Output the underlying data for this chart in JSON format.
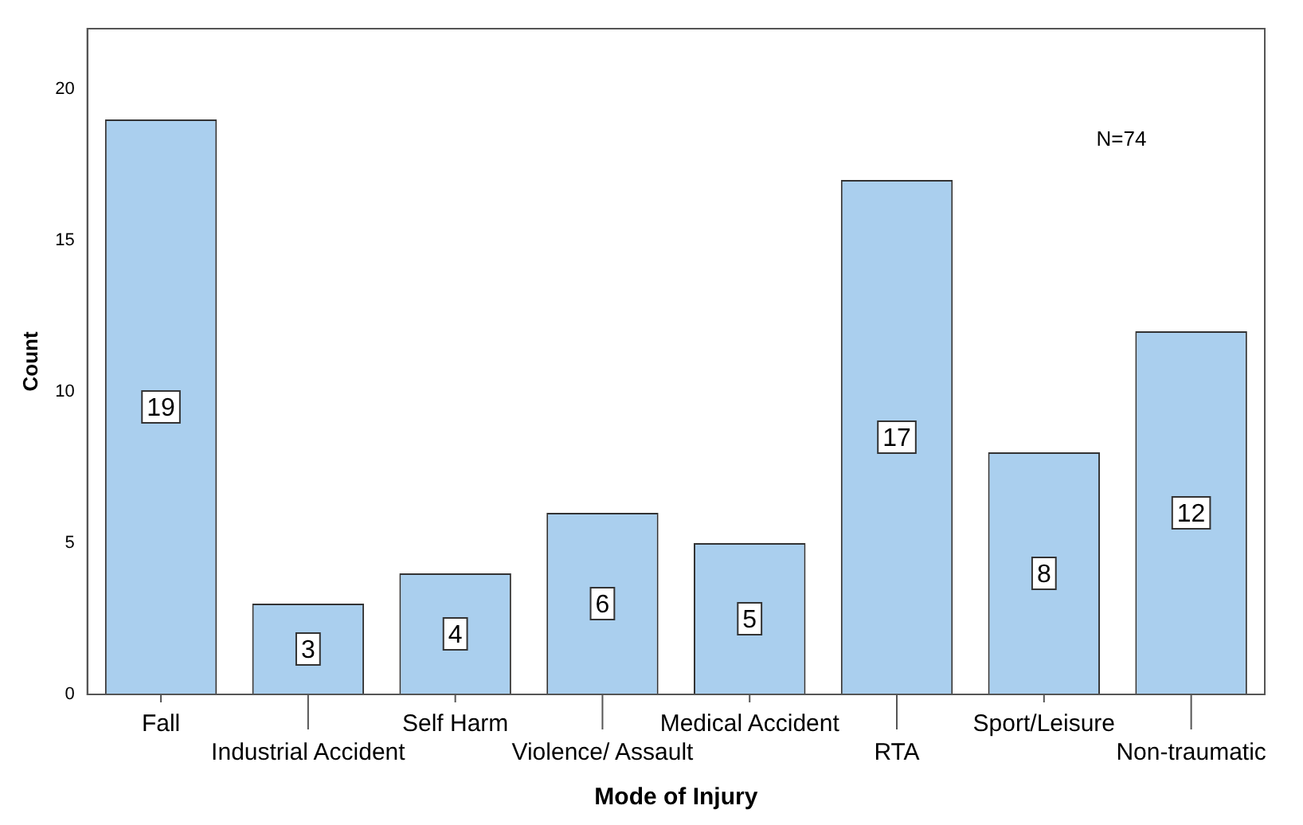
{
  "chart_data": {
    "type": "bar",
    "xlabel": "Mode of Injury",
    "ylabel": "Count",
    "categories": [
      "Fall",
      "Industrial Accident",
      "Self Harm",
      "Violence/ Assault",
      "Medical Accident",
      "RTA",
      "Sport/Leisure",
      "Non-traumatic"
    ],
    "values": [
      19,
      3,
      4,
      6,
      5,
      17,
      8,
      12
    ],
    "color": "#aacfee",
    "ylim": [
      0,
      22
    ],
    "yticks": [
      0,
      5,
      10,
      15,
      20
    ],
    "grid": false,
    "legend": false,
    "data_labels": true,
    "annotations": [
      "N=74"
    ]
  }
}
